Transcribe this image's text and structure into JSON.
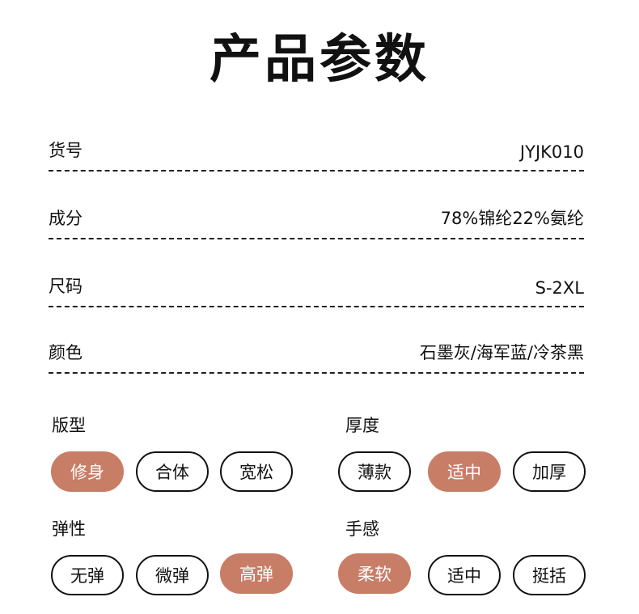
{
  "title": "产品参数",
  "rows": [
    {
      "label": "货号",
      "value": "JYJK010"
    },
    {
      "label": "成分",
      "value": "78%锦纶22%氨纶"
    },
    {
      "label": "尺码",
      "value": "S-2XL"
    },
    {
      "label": "颜色",
      "value": "石墨灰/海军蓝/冷茶黑"
    }
  ],
  "groups": [
    {
      "label": "版型",
      "options": [
        "修身",
        "合体",
        "宽松"
      ],
      "selected": "修身"
    },
    {
      "label": "厚度",
      "options": [
        "薄款",
        "适中",
        "加厚"
      ],
      "selected": "适中"
    },
    {
      "label": "弹性",
      "options": [
        "无弹",
        "微弹",
        "高弹"
      ],
      "selected": "高弹"
    },
    {
      "label": "手感",
      "options": [
        "柔软",
        "适中",
        "挺括"
      ],
      "selected": "柔软"
    }
  ],
  "accent_color": "#c87d66"
}
